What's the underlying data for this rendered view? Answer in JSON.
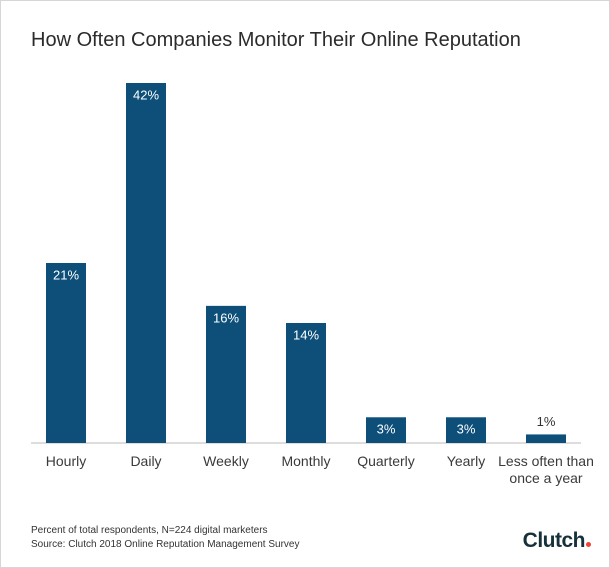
{
  "chart_data": {
    "type": "bar",
    "title": "How Often Companies Monitor Their Online Reputation",
    "categories": [
      "Hourly",
      "Daily",
      "Weekly",
      "Monthly",
      "Quarterly",
      "Yearly",
      "Less often than once a year"
    ],
    "values": [
      21,
      42,
      16,
      14,
      3,
      3,
      1
    ],
    "value_labels": [
      "21%",
      "42%",
      "16%",
      "14%",
      "3%",
      "3%",
      "1%"
    ],
    "color": "#0d4f79",
    "notes": [
      "Percent of total respondents, N=224 digital marketers",
      "Source: Clutch 2018 Online Reputation Management Survey"
    ]
  },
  "logo": "Clutch"
}
